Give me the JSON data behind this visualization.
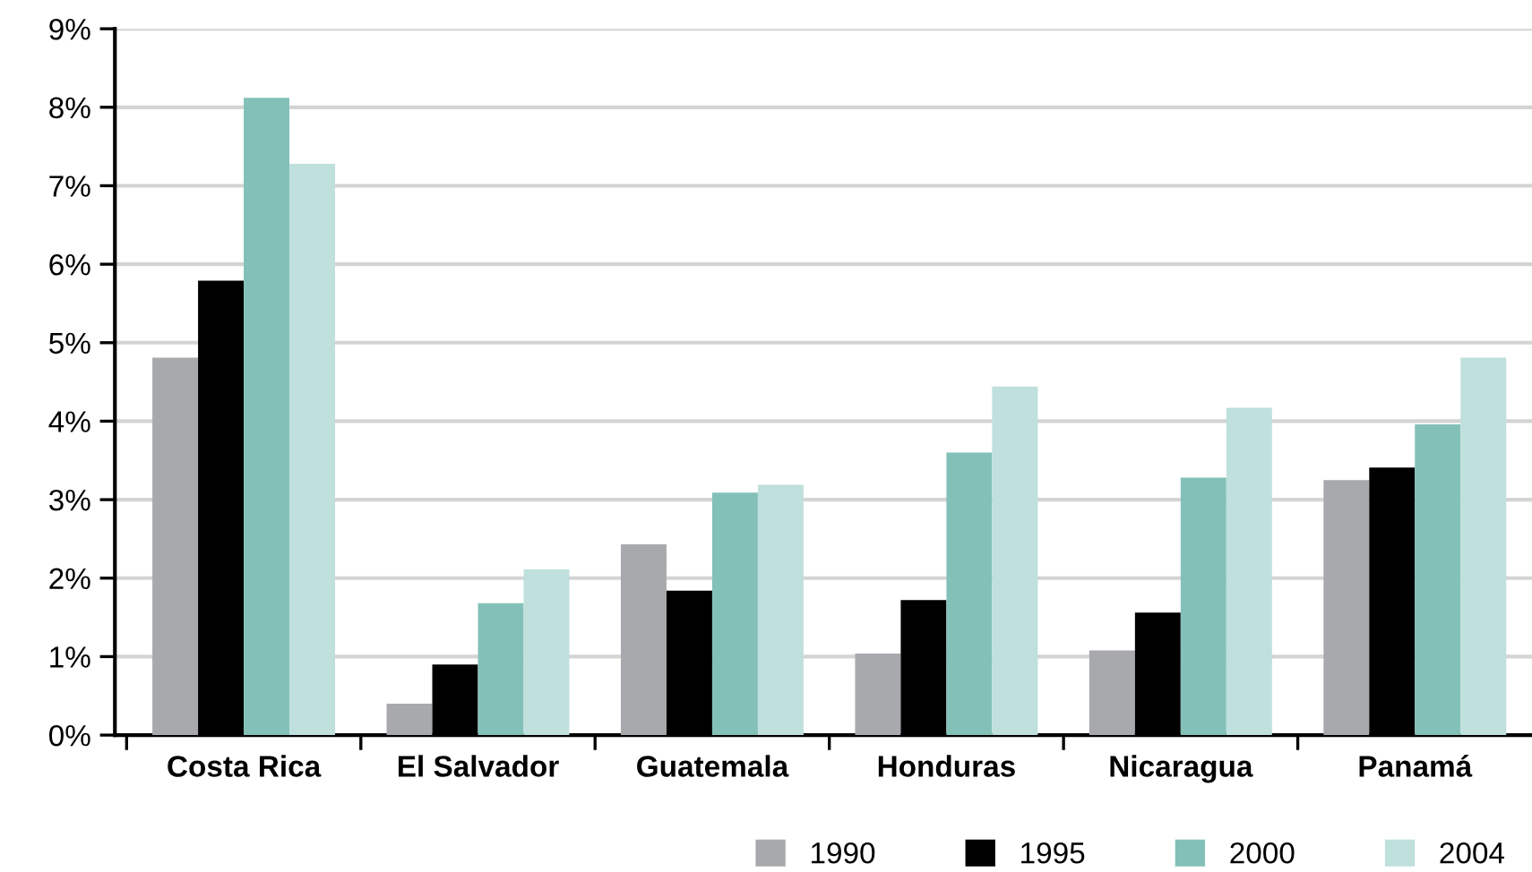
{
  "chart_data": {
    "type": "bar",
    "categories": [
      "Costa Rica",
      "El Salvador",
      "Guatemala",
      "Honduras",
      "Nicaragua",
      "Panamá"
    ],
    "series": [
      {
        "name": "1990",
        "color": "#a8a9ad",
        "values": [
          4.81,
          0.4,
          2.43,
          1.04,
          1.08,
          3.25
        ]
      },
      {
        "name": "1995",
        "color": "#000000",
        "values": [
          5.79,
          0.9,
          1.84,
          1.72,
          1.56,
          3.41
        ]
      },
      {
        "name": "2000",
        "color": "#83c1b8",
        "values": [
          8.12,
          1.68,
          3.09,
          3.6,
          3.28,
          3.96
        ]
      },
      {
        "name": "2004",
        "color": "#bfe0dd",
        "values": [
          7.28,
          2.11,
          3.19,
          4.44,
          4.17,
          4.81
        ]
      }
    ],
    "ylim": [
      0,
      9
    ],
    "yticks": [
      {
        "value": 0,
        "label": "0%"
      },
      {
        "value": 1,
        "label": "1%"
      },
      {
        "value": 2,
        "label": "2%"
      },
      {
        "value": 3,
        "label": "3%"
      },
      {
        "value": 4,
        "label": "4%"
      },
      {
        "value": 5,
        "label": "5%"
      },
      {
        "value": 6,
        "label": "6%"
      },
      {
        "value": 7,
        "label": "7%"
      },
      {
        "value": 8,
        "label": "8%"
      },
      {
        "value": 9,
        "label": "9%"
      }
    ],
    "grid": "y",
    "legend": "bottom right"
  }
}
